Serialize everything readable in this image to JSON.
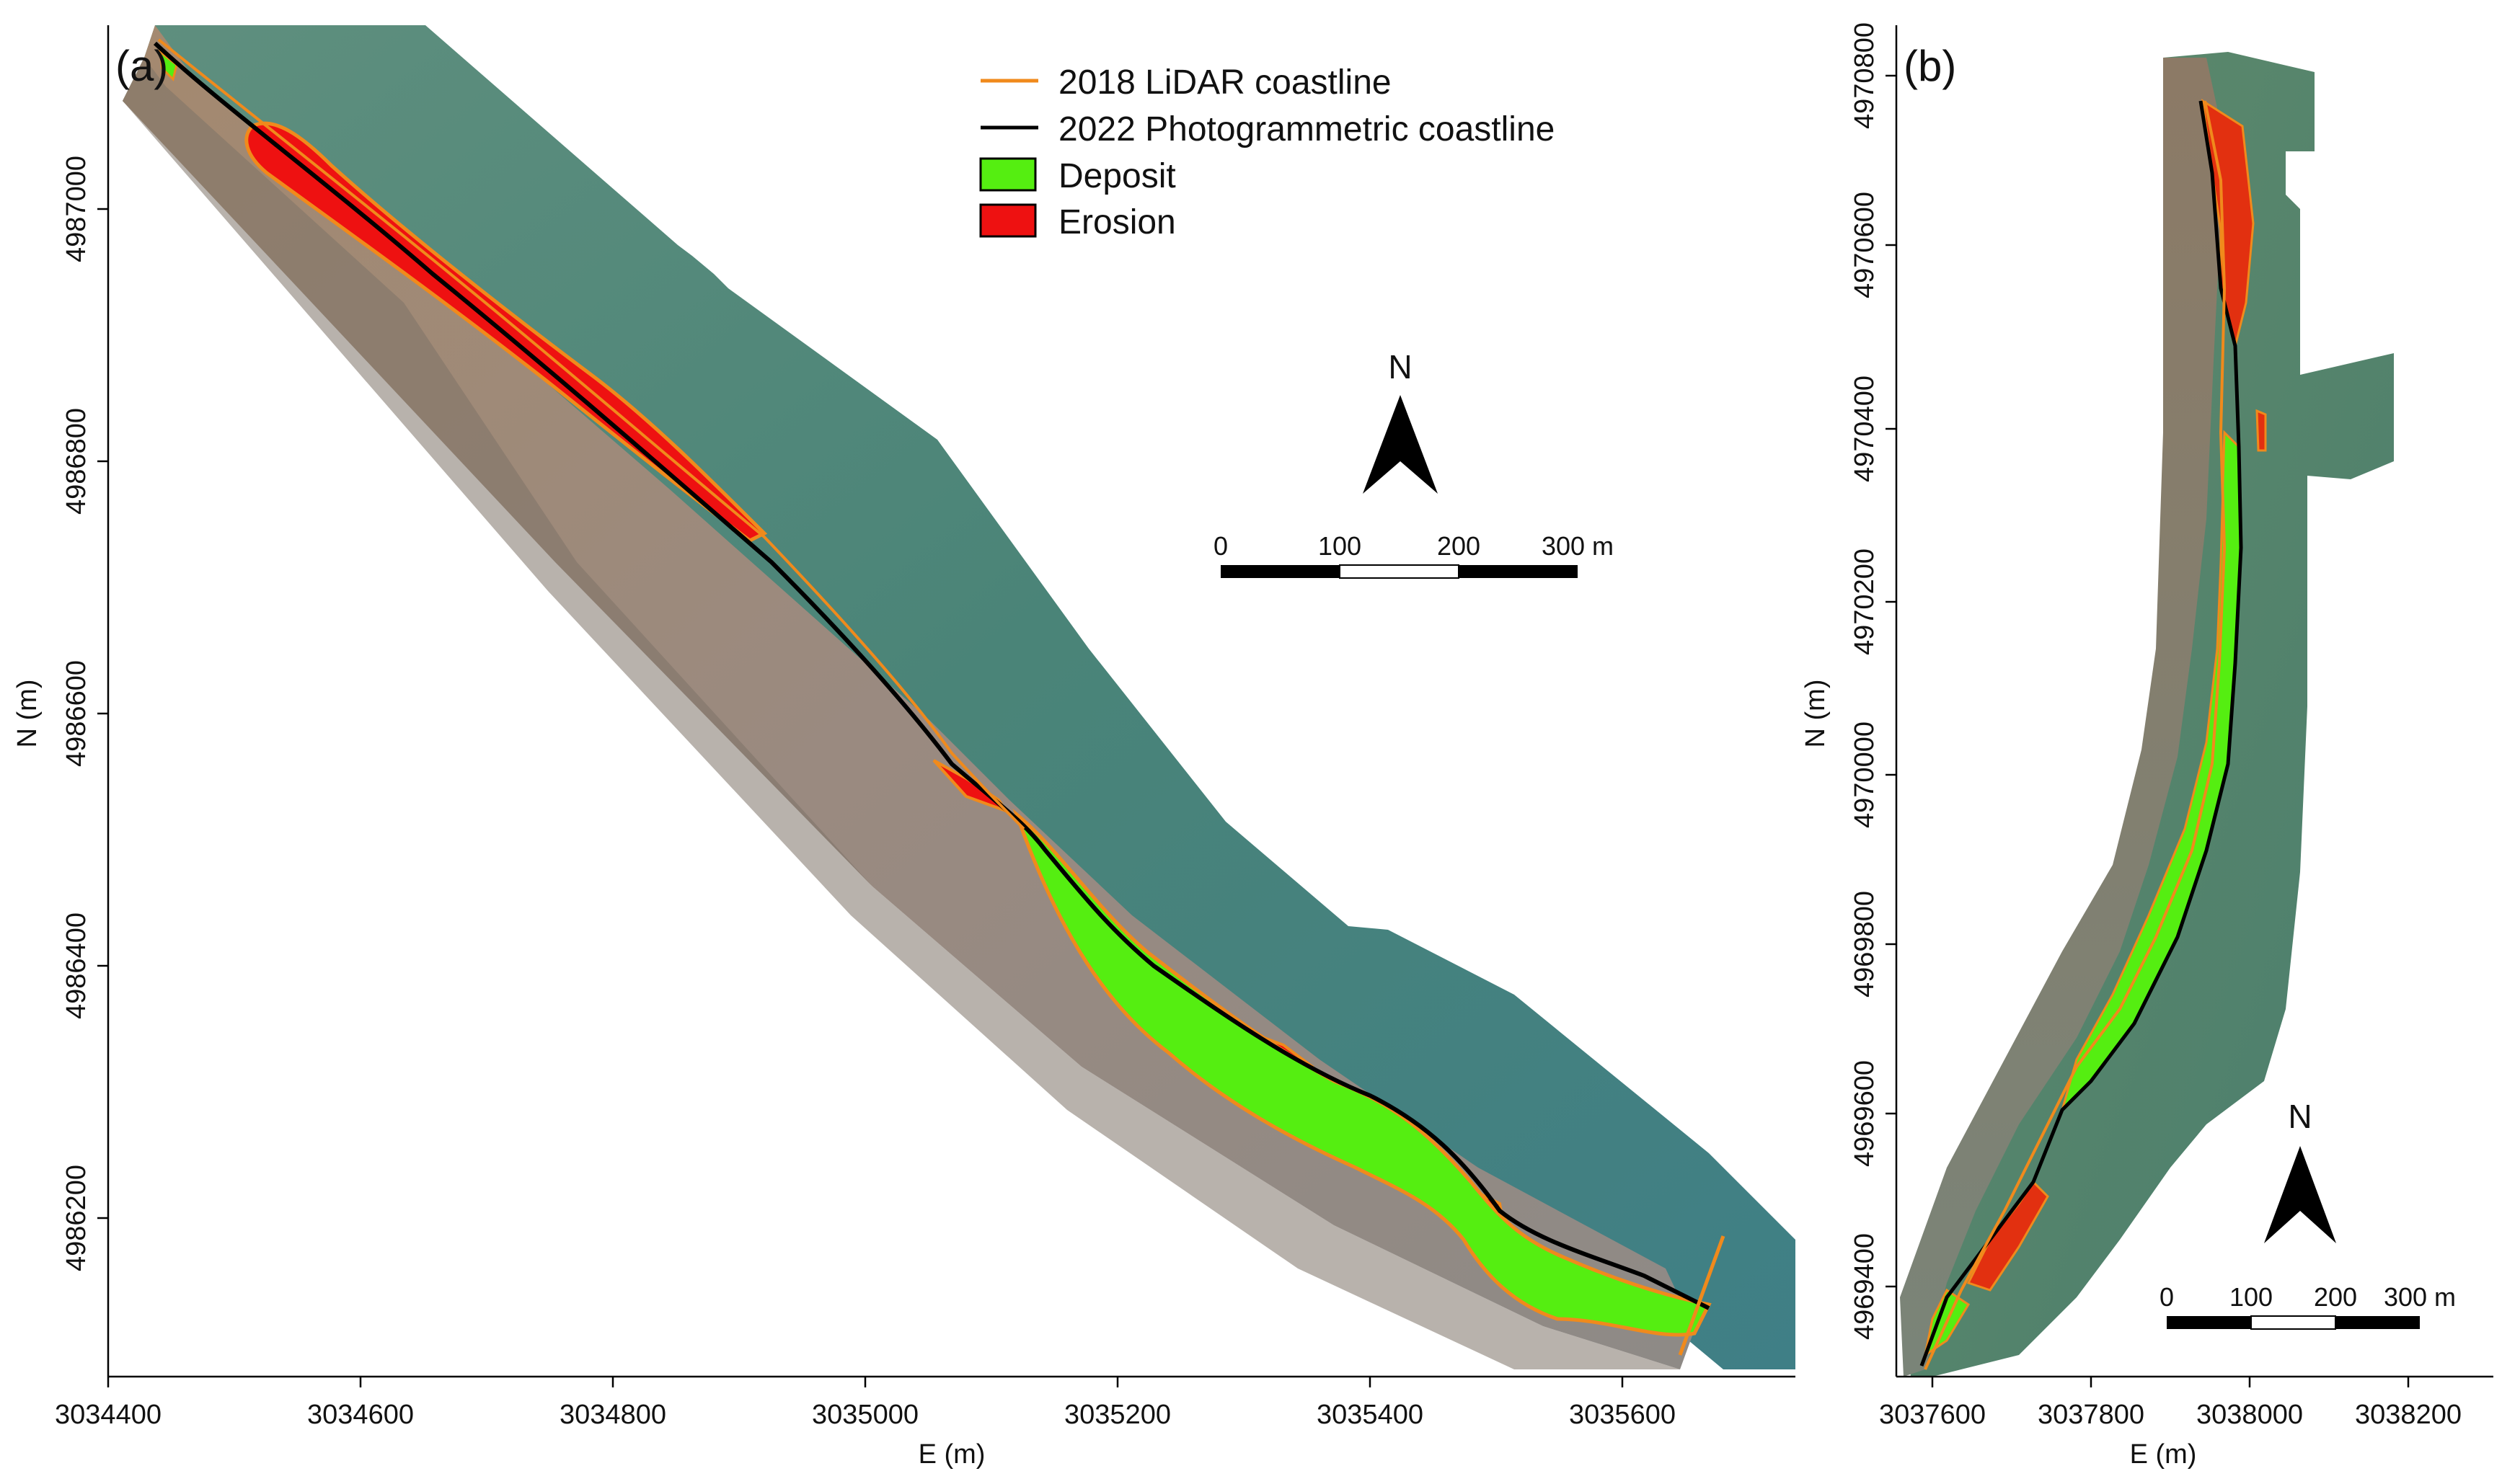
{
  "panel_a": {
    "label": "(a)",
    "x_axis_title": "E (m)",
    "y_axis_title": "N (m)",
    "x_ticks": [
      "3034400",
      "3034600",
      "3034800",
      "3035000",
      "3035200",
      "3035400",
      "3035600"
    ],
    "y_ticks": [
      "4987000",
      "4986800",
      "4986600",
      "4986400",
      "4986200"
    ],
    "north_label": "N",
    "scale_labels": [
      "0",
      "100",
      "200",
      "300 m"
    ]
  },
  "panel_b": {
    "label": "(b)",
    "x_axis_title": "E (m)",
    "y_axis_title": "N (m)",
    "x_ticks": [
      "3037600",
      "3037800",
      "3038000",
      "3038200"
    ],
    "y_ticks": [
      "4970800",
      "4970600",
      "4970400",
      "4970200",
      "4970000",
      "4969800",
      "4969600",
      "4969400"
    ],
    "north_label": "N",
    "scale_labels": [
      "0",
      "100",
      "200",
      "300 m"
    ]
  },
  "legend": {
    "items": [
      {
        "label": "2018 LiDAR coastline",
        "kind": "line",
        "color": "#f08a1c"
      },
      {
        "label": "2022 Photogrammetric coastline",
        "kind": "line",
        "color": "#000000"
      },
      {
        "label": "Deposit",
        "kind": "patch",
        "color": "#55ee11"
      },
      {
        "label": "Erosion",
        "kind": "patch",
        "color": "#ee1111"
      }
    ]
  },
  "colors": {
    "deposit": "#55ee11",
    "erosion": "#ee1111",
    "lidar": "#f08a1c",
    "photogrammetric": "#000000",
    "sea": "#3f7f72",
    "beach": "#a88a72"
  }
}
